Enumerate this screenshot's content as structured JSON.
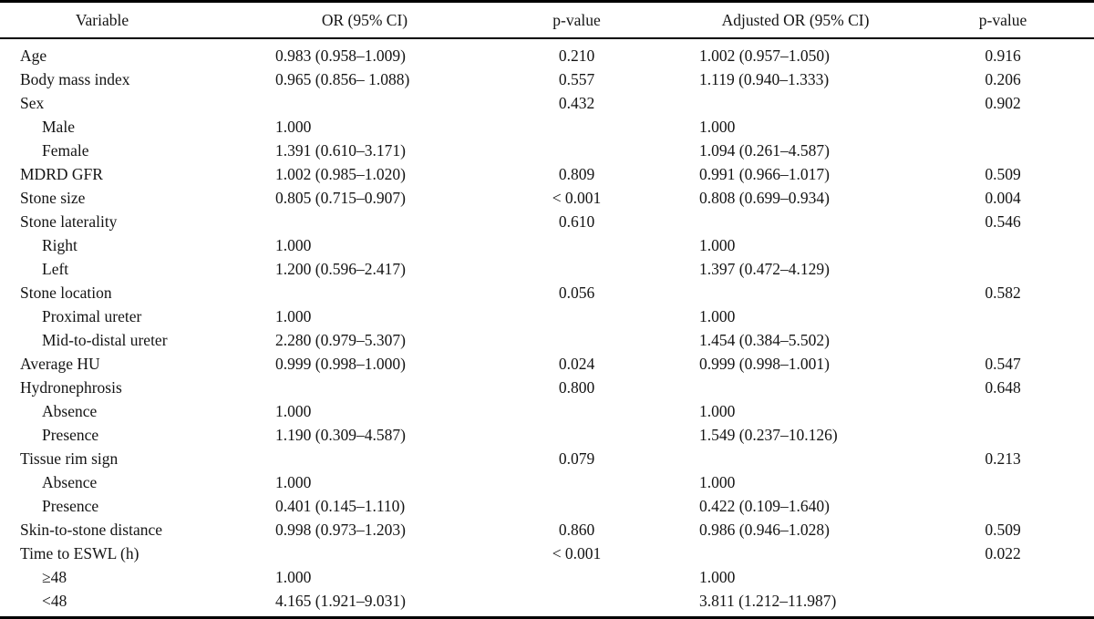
{
  "accent_colors": {
    "text": "#141414",
    "rule": "#000000",
    "background": "#ffffff"
  },
  "table": {
    "columns": [
      {
        "key": "variable",
        "label": "Variable"
      },
      {
        "key": "or",
        "label": "OR (95% CI)"
      },
      {
        "key": "p",
        "label": "p-value"
      },
      {
        "key": "aor",
        "label": "Adjusted OR (95% CI)"
      },
      {
        "key": "ap",
        "label": "p-value"
      }
    ],
    "rows": [
      {
        "label": "Age",
        "indent": false,
        "or": "0.983 (0.958–1.009)",
        "p": "0.210",
        "aor": "1.002 (0.957–1.050)",
        "ap": "0.916"
      },
      {
        "label": "Body mass index",
        "indent": false,
        "or": "0.965 (0.856– 1.088)",
        "p": "0.557",
        "aor": "1.119 (0.940–1.333)",
        "ap": "0.206"
      },
      {
        "label": "Sex",
        "indent": false,
        "or": "",
        "p": "0.432",
        "aor": "",
        "ap": "0.902"
      },
      {
        "label": "Male",
        "indent": true,
        "or": "1.000",
        "p": "",
        "aor": "1.000",
        "ap": ""
      },
      {
        "label": "Female",
        "indent": true,
        "or": "1.391 (0.610–3.171)",
        "p": "",
        "aor": "1.094 (0.261–4.587)",
        "ap": ""
      },
      {
        "label": "MDRD GFR",
        "indent": false,
        "or": "1.002 (0.985–1.020)",
        "p": "0.809",
        "aor": "0.991 (0.966–1.017)",
        "ap": "0.509"
      },
      {
        "label": "Stone size",
        "indent": false,
        "or": "0.805 (0.715–0.907)",
        "p": "< 0.001",
        "aor": "0.808 (0.699–0.934)",
        "ap": "0.004"
      },
      {
        "label": "Stone laterality",
        "indent": false,
        "or": "",
        "p": "0.610",
        "aor": "",
        "ap": "0.546"
      },
      {
        "label": "Right",
        "indent": true,
        "or": "1.000",
        "p": "",
        "aor": "1.000",
        "ap": ""
      },
      {
        "label": "Left",
        "indent": true,
        "or": "1.200 (0.596–2.417)",
        "p": "",
        "aor": "1.397 (0.472–4.129)",
        "ap": ""
      },
      {
        "label": "Stone location",
        "indent": false,
        "or": "",
        "p": "0.056",
        "aor": "",
        "ap": "0.582"
      },
      {
        "label": "Proximal ureter",
        "indent": true,
        "or": "1.000",
        "p": "",
        "aor": "1.000",
        "ap": ""
      },
      {
        "label": "Mid-to-distal ureter",
        "indent": true,
        "or": "2.280 (0.979–5.307)",
        "p": "",
        "aor": "1.454 (0.384–5.502)",
        "ap": ""
      },
      {
        "label": "Average HU",
        "indent": false,
        "or": "0.999 (0.998–1.000)",
        "p": "0.024",
        "aor": "0.999 (0.998–1.001)",
        "ap": "0.547"
      },
      {
        "label": "Hydronephrosis",
        "indent": false,
        "or": "",
        "p": "0.800",
        "aor": "",
        "ap": "0.648"
      },
      {
        "label": "Absence",
        "indent": true,
        "or": "1.000",
        "p": "",
        "aor": "1.000",
        "ap": ""
      },
      {
        "label": "Presence",
        "indent": true,
        "or": "1.190 (0.309–4.587)",
        "p": "",
        "aor": "1.549 (0.237–10.126)",
        "ap": ""
      },
      {
        "label": "Tissue rim sign",
        "indent": false,
        "or": "",
        "p": "0.079",
        "aor": "",
        "ap": "0.213"
      },
      {
        "label": "Absence",
        "indent": true,
        "or": "1.000",
        "p": "",
        "aor": "1.000",
        "ap": ""
      },
      {
        "label": "Presence",
        "indent": true,
        "or": "0.401 (0.145–1.110)",
        "p": "",
        "aor": "0.422 (0.109–1.640)",
        "ap": ""
      },
      {
        "label": "Skin-to-stone distance",
        "indent": false,
        "or": "0.998 (0.973–1.203)",
        "p": "0.860",
        "aor": "0.986 (0.946–1.028)",
        "ap": "0.509"
      },
      {
        "label": "Time to ESWL (h)",
        "indent": false,
        "or": "",
        "p": "< 0.001",
        "aor": "",
        "ap": "0.022"
      },
      {
        "label": "≥48",
        "indent": true,
        "or": "1.000",
        "p": "",
        "aor": "1.000",
        "ap": ""
      },
      {
        "label": "<48",
        "indent": true,
        "or": "4.165 (1.921–9.031)",
        "p": "",
        "aor": "3.811 (1.212–11.987)",
        "ap": ""
      }
    ]
  }
}
